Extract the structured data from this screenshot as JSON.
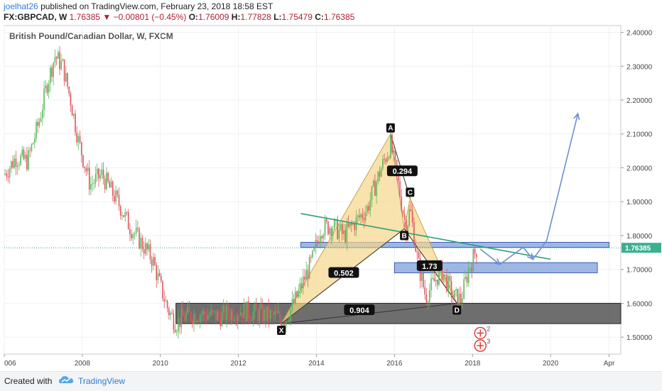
{
  "header": {
    "author": "joelhat26",
    "published_text": "published on TradingView.com, February 23, 2018 18:58 EST",
    "symbol": "FX:GBPCAD, W",
    "last": "1.76385",
    "change": "▼ −0.00801 (−0.45%)",
    "open_label": "O:",
    "open": "1.76009",
    "high_label": "H:",
    "high": "1.77828",
    "low_label": "L:",
    "low": "1.75479",
    "close_label": "C:",
    "close": "1.76385"
  },
  "chart_title": "British Pound/Canadian Dollar, W, FXCM",
  "footer": {
    "created_with": "Created with",
    "brand": "TradingView"
  },
  "colors": {
    "up": "#5cb85c",
    "down": "#e0545f",
    "pattern_fill": "#f5d58a",
    "zone_blue": "#7f9fd9",
    "zone_dark": "#555555",
    "arrow": "#6f8fcf",
    "trend": "#2aa07a"
  },
  "chart_data": {
    "type": "candlestick",
    "y_axis_ticks": [
      "2.40000",
      "2.30000",
      "2.20000",
      "2.10000",
      "2.00000",
      "1.90000",
      "1.80000",
      "1.70000",
      "1.60000",
      "1.50000"
    ],
    "x_axis_ticks": [
      "006",
      "2008",
      "2010",
      "2012",
      "2014",
      "2016",
      "2018",
      "2020",
      "Apr"
    ],
    "ylim": [
      1.45,
      2.42
    ],
    "last_price_label": "1.76385",
    "price_path": [
      [
        2006.0,
        1.98
      ],
      [
        2006.3,
        2.03
      ],
      [
        2006.6,
        2.02
      ],
      [
        2006.9,
        2.14
      ],
      [
        2007.1,
        2.25
      ],
      [
        2007.3,
        2.33
      ],
      [
        2007.5,
        2.3
      ],
      [
        2007.7,
        2.2
      ],
      [
        2007.9,
        2.08
      ],
      [
        2008.2,
        1.95
      ],
      [
        2008.5,
        1.98
      ],
      [
        2008.8,
        1.92
      ],
      [
        2009.0,
        1.88
      ],
      [
        2009.2,
        1.83
      ],
      [
        2009.5,
        1.78
      ],
      [
        2009.8,
        1.73
      ],
      [
        2010.0,
        1.65
      ],
      [
        2010.2,
        1.58
      ],
      [
        2010.4,
        1.54
      ],
      [
        2010.6,
        1.56
      ],
      [
        2011.0,
        1.57
      ],
      [
        2011.5,
        1.56
      ],
      [
        2012.0,
        1.58
      ],
      [
        2012.5,
        1.57
      ],
      [
        2013.0,
        1.56
      ],
      [
        2013.2,
        1.55
      ],
      [
        2013.5,
        1.62
      ],
      [
        2013.9,
        1.73
      ],
      [
        2014.1,
        1.82
      ],
      [
        2014.4,
        1.83
      ],
      [
        2014.7,
        1.8
      ],
      [
        2015.0,
        1.84
      ],
      [
        2015.3,
        1.88
      ],
      [
        2015.6,
        1.98
      ],
      [
        2015.9,
        2.07
      ],
      [
        2016.1,
        1.95
      ],
      [
        2016.3,
        1.82
      ],
      [
        2016.4,
        1.88
      ],
      [
        2016.6,
        1.72
      ],
      [
        2016.8,
        1.62
      ],
      [
        2017.0,
        1.66
      ],
      [
        2017.2,
        1.7
      ],
      [
        2017.5,
        1.62
      ],
      [
        2017.7,
        1.61
      ],
      [
        2017.9,
        1.7
      ],
      [
        2018.1,
        1.76
      ]
    ],
    "harmonic_points": [
      {
        "label": "X",
        "x": 2013.1,
        "y": 1.54
      },
      {
        "label": "A",
        "x": 2015.9,
        "y": 2.1
      },
      {
        "label": "B",
        "x": 2016.25,
        "y": 1.82
      },
      {
        "label": "C",
        "x": 2016.4,
        "y": 1.91
      },
      {
        "label": "D",
        "x": 2017.6,
        "y": 1.6
      }
    ],
    "ratios": [
      {
        "text": "0.294",
        "x": 2016.2,
        "y": 1.99
      },
      {
        "text": "0.502",
        "x": 2014.7,
        "y": 1.69
      },
      {
        "text": "1.73",
        "x": 2016.9,
        "y": 1.71
      },
      {
        "text": "0.904",
        "x": 2015.1,
        "y": 1.58
      }
    ],
    "zones": [
      {
        "name": "upper-blue",
        "x0": 2013.6,
        "x1": 2021.5,
        "y0": 1.765,
        "y1": 1.78
      },
      {
        "name": "lower-blue",
        "x0": 2016.0,
        "x1": 2021.2,
        "y0": 1.69,
        "y1": 1.72
      },
      {
        "name": "dark",
        "x0": 2010.4,
        "x1": 2021.8,
        "y0": 1.54,
        "y1": 1.6
      }
    ],
    "trendline": {
      "x0": 2013.6,
      "y0": 1.865,
      "x1": 2020.0,
      "y1": 1.73
    },
    "projection": [
      [
        2018.2,
        1.76
      ],
      [
        2018.7,
        1.715
      ],
      [
        2019.3,
        1.765
      ],
      [
        2019.55,
        1.73
      ],
      [
        2019.9,
        1.785
      ],
      [
        2020.7,
        2.16
      ]
    ],
    "events": [
      {
        "x": 2018.2,
        "y": 1.512,
        "count": "2"
      },
      {
        "x": 2018.2,
        "y": 1.475,
        "count": "3"
      }
    ]
  }
}
